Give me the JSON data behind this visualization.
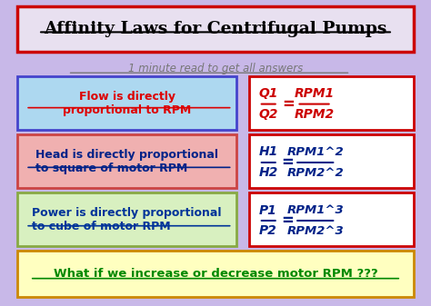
{
  "title": "Affinity Laws for Centrifugal Pumps",
  "subtitle": "1 minute read to get all answers",
  "bg_color": "#c8b8e8",
  "title_border_color": "#cc0000",
  "title_bg": "#e8e0f0",
  "subtitle_color": "#777777",
  "row1": {
    "left_text": "Flow is directly\nproportional to RPM",
    "left_bg": "#add8f0",
    "left_border": "#4444cc",
    "left_text_color": "#dd0000",
    "right_line1_left": "Q1",
    "right_line2_left": "Q2",
    "right_line1_right": "RPM1",
    "right_line2_right": "RPM2",
    "right_bg": "#ffffff",
    "right_border": "#cc0000",
    "right_text_color": "#cc0000"
  },
  "row2": {
    "left_text": "Head is directly proportional\nto square of motor RPM",
    "left_bg": "#f0b0b0",
    "left_border": "#cc4444",
    "left_text_color": "#002288",
    "right_line1_left": "H1",
    "right_line2_left": "H2",
    "right_line1_right": "RPM1^2",
    "right_line2_right": "RPM2^2",
    "right_bg": "#ffffff",
    "right_border": "#cc0000",
    "right_text_color": "#002288"
  },
  "row3": {
    "left_text": "Power is directly proportional\nto cube of motor RPM",
    "left_bg": "#d8f0c0",
    "left_border": "#88aa44",
    "left_text_color": "#003399",
    "right_line1_left": "P1",
    "right_line2_left": "P2",
    "right_line1_right": "RPM1^3",
    "right_line2_right": "RPM2^3",
    "right_bg": "#ffffff",
    "right_border": "#cc0000",
    "right_text_color": "#002288"
  },
  "bottom_text": "What if we increase or decrease motor RPM ???",
  "bottom_bg": "#ffffc0",
  "bottom_border": "#cc8800",
  "bottom_text_color": "#008800"
}
